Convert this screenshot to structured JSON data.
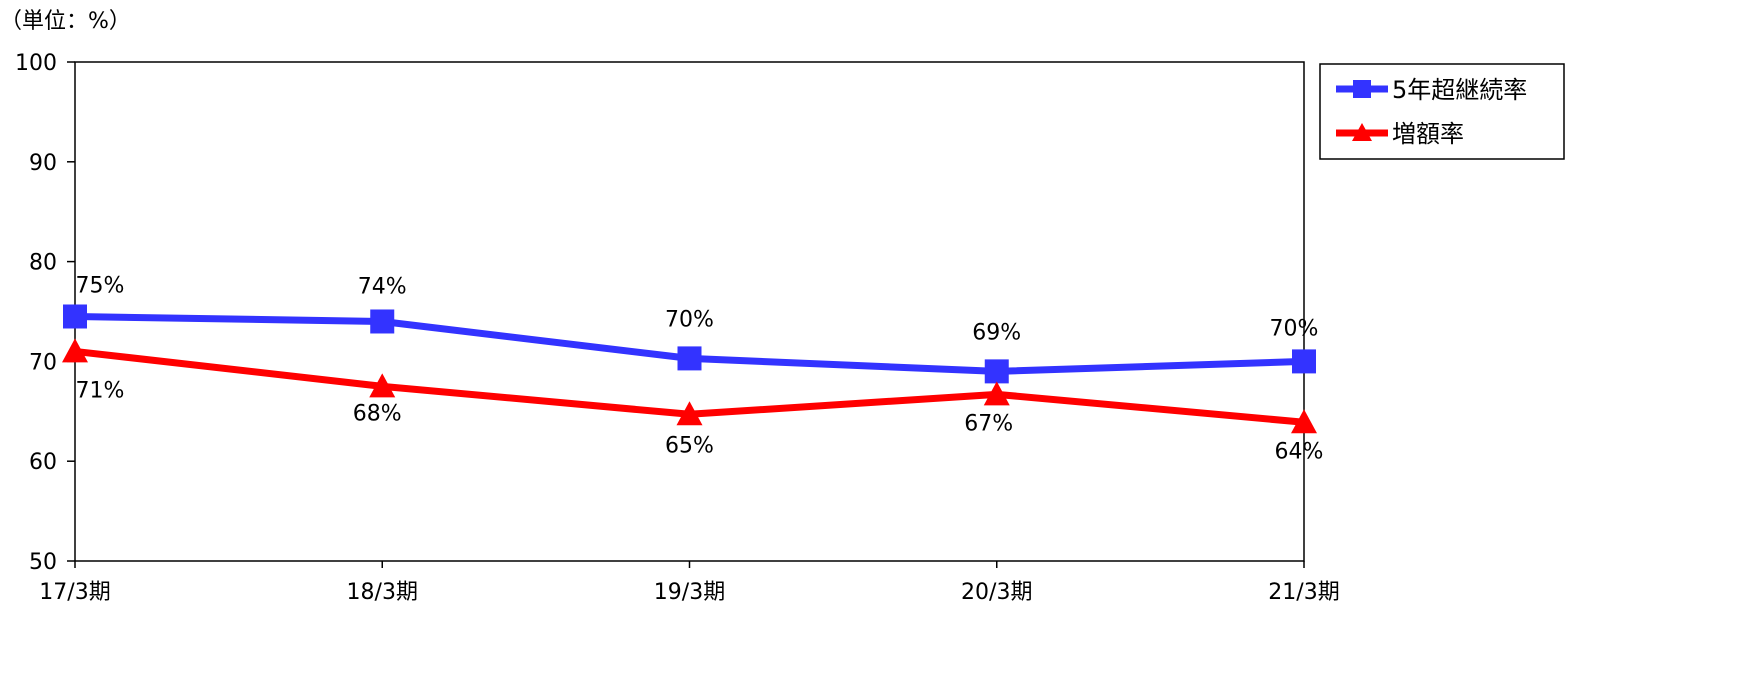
{
  "chart_data": {
    "type": "line",
    "title": "",
    "unit_label": "（単位：%）",
    "categories": [
      "17/3期",
      "18/3期",
      "19/3期",
      "20/3期",
      "21/3期"
    ],
    "ylim": [
      50,
      100
    ],
    "yticks": [
      50,
      60,
      70,
      80,
      90,
      100
    ],
    "ytick_labels": [
      "50",
      "60",
      "70",
      "80",
      "90",
      "100"
    ],
    "grid": false,
    "legend_position": "top-right",
    "series": [
      {
        "name": "5年超継続率",
        "marker": "square",
        "color": "#3333ff",
        "values": [
          74.5,
          74.0,
          70.3,
          69.0,
          70.0
        ],
        "labels": [
          "75%",
          "74%",
          "70%",
          "69%",
          "70%"
        ],
        "label_position": "above"
      },
      {
        "name": "増額率",
        "marker": "triangle",
        "color": "#ff0000",
        "values": [
          71.0,
          67.5,
          64.7,
          66.7,
          63.9
        ],
        "labels": [
          "71%",
          "68%",
          "65%",
          "67%",
          "64%"
        ],
        "label_position": "below"
      }
    ]
  }
}
